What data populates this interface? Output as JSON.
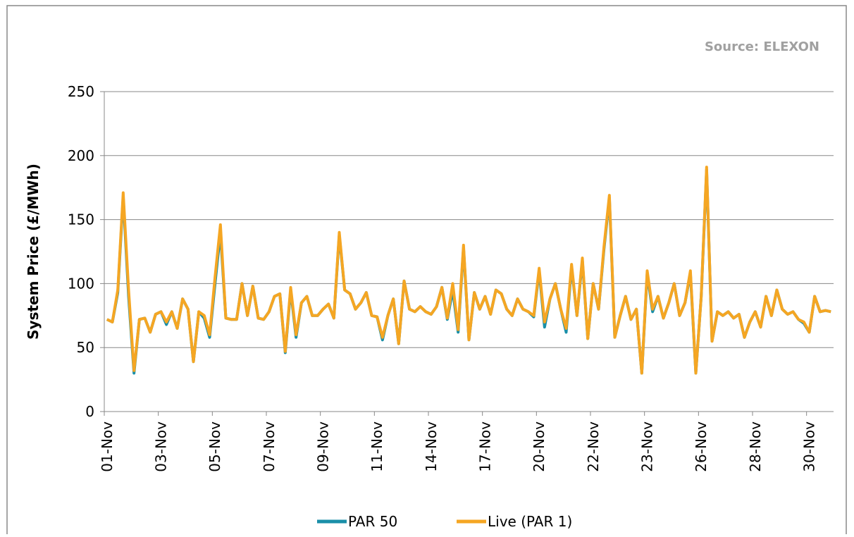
{
  "chart_data": {
    "type": "line",
    "source": "Source: ELEXON",
    "ylabel": "System Price (£/MWh)",
    "ylim": [
      0,
      250
    ],
    "yticks": [
      0,
      50,
      100,
      150,
      200,
      250
    ],
    "grid": true,
    "legend": "bottom",
    "categories": [
      "01-Nov",
      null,
      null,
      null,
      null,
      null,
      null,
      null,
      null,
      null,
      "03-Nov",
      null,
      null,
      null,
      null,
      null,
      null,
      null,
      null,
      null,
      "05-Nov",
      null,
      null,
      null,
      null,
      null,
      null,
      null,
      null,
      null,
      "07-Nov",
      null,
      null,
      null,
      null,
      null,
      null,
      null,
      null,
      null,
      "09-Nov",
      null,
      null,
      null,
      null,
      null,
      null,
      null,
      null,
      null,
      "11-Nov",
      null,
      null,
      null,
      null,
      null,
      null,
      null,
      null,
      null,
      "14-Nov",
      null,
      null,
      null,
      null,
      null,
      null,
      null,
      null,
      null,
      "17-Nov",
      null,
      null,
      null,
      null,
      null,
      null,
      null,
      null,
      null,
      "20-Nov",
      null,
      null,
      null,
      null,
      null,
      null,
      null,
      null,
      null,
      "22-Nov",
      null,
      null,
      null,
      null,
      null,
      null,
      null,
      null,
      null,
      "23-Nov",
      null,
      null,
      null,
      null,
      null,
      null,
      null,
      null,
      null,
      "26-Nov",
      null,
      null,
      null,
      null,
      null,
      null,
      null,
      null,
      null,
      "28-Nov",
      null,
      null,
      null,
      null,
      null,
      null,
      null,
      null,
      null,
      "30-Nov",
      null,
      null,
      null,
      null
    ],
    "series": [
      {
        "name": "PAR 50",
        "color": "#1a8fa8",
        "values": [
          72,
          70,
          93,
          168,
          90,
          30,
          72,
          73,
          62,
          76,
          78,
          68,
          78,
          65,
          88,
          80,
          39,
          78,
          73,
          58,
          100,
          140,
          73,
          72,
          72,
          100,
          75,
          98,
          73,
          72,
          78,
          90,
          92,
          46,
          95,
          58,
          85,
          90,
          75,
          75,
          80,
          84,
          73,
          138,
          95,
          92,
          80,
          85,
          93,
          75,
          74,
          56,
          75,
          88,
          53,
          102,
          80,
          78,
          82,
          78,
          76,
          82,
          97,
          72,
          95,
          62,
          128,
          56,
          93,
          80,
          90,
          76,
          95,
          92,
          80,
          75,
          88,
          80,
          78,
          74,
          110,
          66,
          88,
          100,
          80,
          62,
          113,
          75,
          118,
          57,
          100,
          80,
          127,
          167,
          58,
          75,
          90,
          72,
          80,
          30,
          108,
          78,
          90,
          73,
          85,
          100,
          75,
          85,
          108,
          30,
          90,
          189,
          55,
          78,
          75,
          78,
          73,
          76,
          58,
          70,
          78,
          66,
          90,
          75,
          95,
          80,
          76,
          78,
          72,
          69,
          62,
          90,
          78,
          79,
          78
        ]
      },
      {
        "name": "Live (PAR 1)",
        "color": "#f5a623",
        "values": [
          72,
          70,
          95,
          171,
          95,
          32,
          72,
          73,
          62,
          76,
          78,
          70,
          78,
          65,
          88,
          80,
          39,
          78,
          75,
          60,
          105,
          146,
          73,
          72,
          72,
          100,
          75,
          98,
          73,
          72,
          78,
          90,
          92,
          47,
          97,
          60,
          85,
          90,
          75,
          75,
          80,
          84,
          73,
          140,
          95,
          92,
          80,
          85,
          93,
          75,
          74,
          58,
          75,
          88,
          53,
          102,
          80,
          78,
          82,
          78,
          76,
          82,
          97,
          73,
          100,
          64,
          130,
          56,
          93,
          80,
          90,
          76,
          95,
          92,
          80,
          75,
          88,
          80,
          78,
          75,
          112,
          70,
          88,
          100,
          80,
          65,
          115,
          75,
          120,
          57,
          100,
          80,
          129,
          169,
          58,
          75,
          90,
          72,
          80,
          30,
          110,
          80,
          90,
          73,
          85,
          100,
          75,
          85,
          110,
          30,
          90,
          191,
          55,
          78,
          75,
          78,
          73,
          76,
          58,
          70,
          78,
          66,
          90,
          75,
          95,
          80,
          76,
          78,
          72,
          70,
          62,
          90,
          78,
          79,
          78
        ]
      }
    ]
  }
}
